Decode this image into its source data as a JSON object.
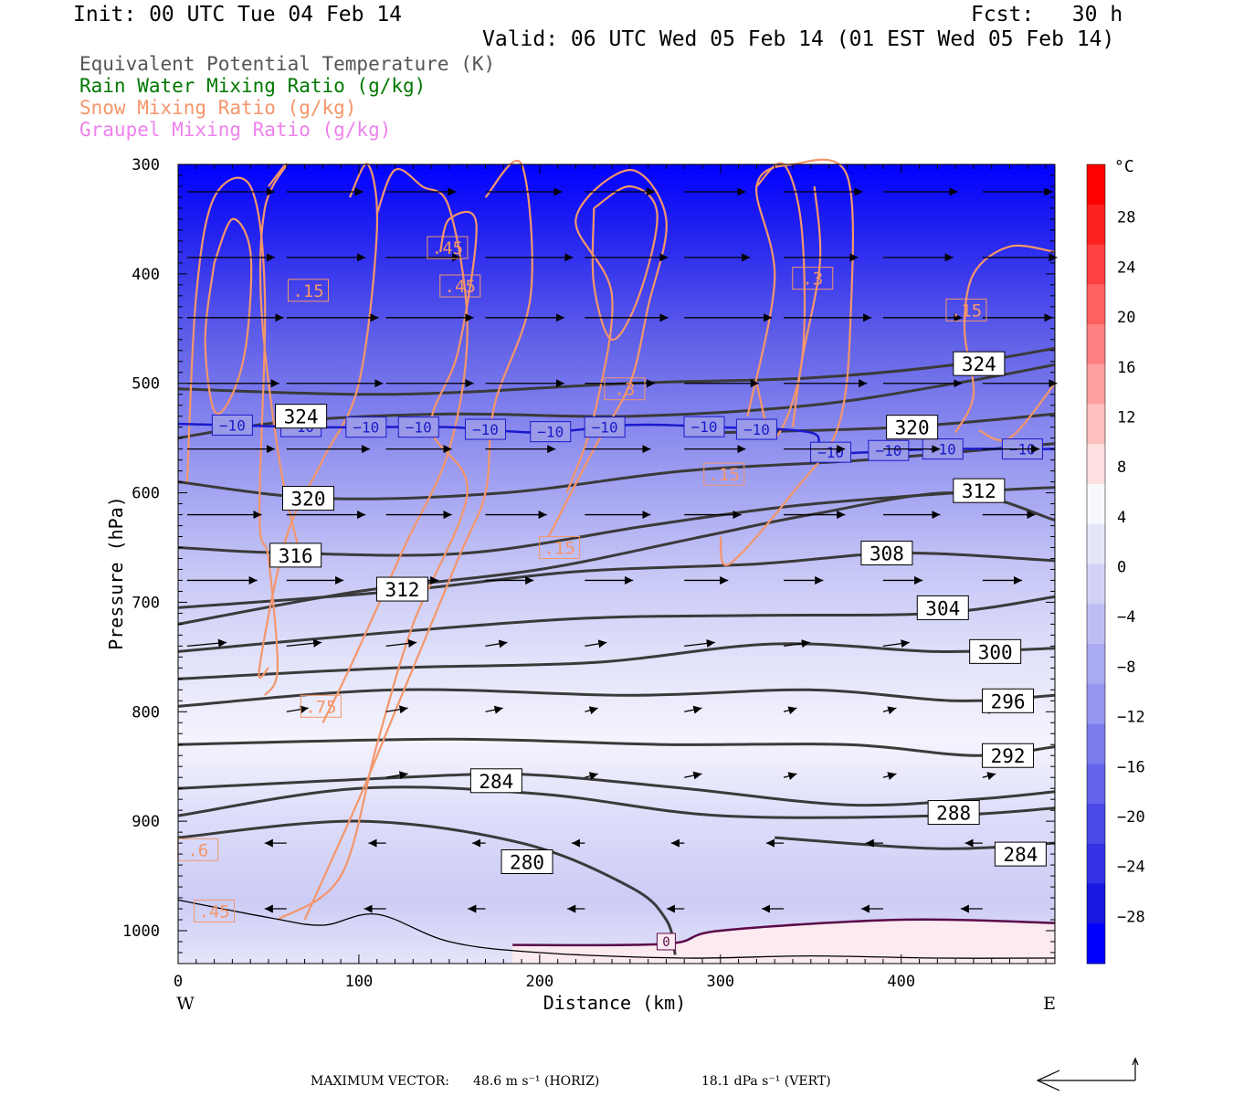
{
  "header": {
    "init": "Init: 00 UTC Tue 04 Feb 14",
    "fcst": "Fcst:   30 h",
    "valid": "Valid: 06 UTC Wed 05 Feb 14 (01 EST Wed 05 Feb 14)"
  },
  "legend": [
    {
      "label": "Equivalent Potential Temperature (K)",
      "color": "#555555"
    },
    {
      "label": "Rain Water Mixing Ratio (g/kg)",
      "color": "#007700"
    },
    {
      "label": "Snow Mixing Ratio (g/kg)",
      "color": "#f4966a"
    },
    {
      "label": "Graupel Mixing Ratio (g/kg)",
      "color": "#ee82ee"
    }
  ],
  "colorbar": {
    "unit": "°C",
    "labels": [
      "28",
      "24",
      "20",
      "16",
      "12",
      "8",
      "4",
      "0",
      "−4",
      "−8",
      "−12",
      "−16",
      "−20",
      "−24",
      "−28"
    ],
    "colors": [
      "#ff0000",
      "#ff2020",
      "#ff4040",
      "#ff6060",
      "#ff8080",
      "#ffa0a0",
      "#ffc0c0",
      "#ffe0e0",
      "#f8f8ff",
      "#e6e6fa",
      "#d2d2f8",
      "#bebef5",
      "#aaaaf3",
      "#9696f0",
      "#7c7cee",
      "#6464ea",
      "#4a4ae6",
      "#3232e4",
      "#1818e2",
      "#0000ff"
    ]
  },
  "chart_data": {
    "type": "cross-section",
    "xlabel": "Distance (km)",
    "ylabel": "Pressure (hPa)",
    "xlim": [
      0,
      485
    ],
    "ylim": [
      1030,
      300
    ],
    "x_ticks": [
      "0",
      "100",
      "200",
      "300",
      "400"
    ],
    "x_tick_values": [
      0,
      100,
      200,
      300,
      400
    ],
    "y_ticks": [
      "300",
      "400",
      "500",
      "600",
      "700",
      "800",
      "900",
      "1000"
    ],
    "y_tick_values": [
      300,
      400,
      500,
      600,
      700,
      800,
      900,
      1000
    ],
    "west_label": "W",
    "east_label": "E",
    "theta_e_contours": [
      {
        "label": "324",
        "lx": 68,
        "lp": 530,
        "pts": [
          [
            0,
            550
          ],
          [
            60,
            535
          ],
          [
            150,
            528
          ],
          [
            250,
            530
          ],
          [
            350,
            520
          ],
          [
            430,
            500
          ],
          [
            485,
            483
          ]
        ]
      },
      {
        "label": "324",
        "lx": 443,
        "lp": 482,
        "pts": [
          [
            0,
            505
          ],
          [
            120,
            510
          ],
          [
            250,
            500
          ],
          [
            350,
            495
          ],
          [
            430,
            483
          ],
          [
            485,
            468
          ]
        ]
      },
      {
        "label": "320",
        "lx": 72,
        "lp": 605,
        "pts": [
          [
            0,
            590
          ],
          [
            80,
            605
          ],
          [
            180,
            600
          ],
          [
            280,
            580
          ],
          [
            380,
            570
          ],
          [
            485,
            555
          ]
        ]
      },
      {
        "label": "320",
        "lx": 406,
        "lp": 540,
        "pts": [
          [
            300,
            545
          ],
          [
            400,
            540
          ],
          [
            485,
            528
          ]
        ]
      },
      {
        "label": "316",
        "lx": 65,
        "lp": 657,
        "pts": [
          [
            0,
            650
          ],
          [
            60,
            655
          ],
          [
            160,
            655
          ],
          [
            260,
            630
          ],
          [
            340,
            612
          ],
          [
            430,
            600
          ],
          [
            485,
            595
          ]
        ]
      },
      {
        "label": "312",
        "lx": 124,
        "lp": 688,
        "pts": [
          [
            0,
            720
          ],
          [
            100,
            690
          ],
          [
            200,
            670
          ],
          [
            290,
            640
          ],
          [
            350,
            620
          ],
          [
            430,
            600
          ],
          [
            485,
            625
          ]
        ]
      },
      {
        "label": "312",
        "lx": 443,
        "lp": 598,
        "pts": []
      },
      {
        "label": "308",
        "lx": 392,
        "lp": 655,
        "pts": [
          [
            0,
            705
          ],
          [
            120,
            690
          ],
          [
            220,
            672
          ],
          [
            320,
            665
          ],
          [
            400,
            655
          ],
          [
            485,
            662
          ]
        ]
      },
      {
        "label": "304",
        "lx": 423,
        "lp": 705,
        "pts": [
          [
            0,
            745
          ],
          [
            100,
            730
          ],
          [
            220,
            715
          ],
          [
            320,
            712
          ],
          [
            420,
            710
          ],
          [
            485,
            695
          ]
        ]
      },
      {
        "label": "300",
        "lx": 452,
        "lp": 745,
        "pts": [
          [
            0,
            770
          ],
          [
            120,
            760
          ],
          [
            230,
            755
          ],
          [
            330,
            738
          ],
          [
            420,
            745
          ],
          [
            485,
            742
          ]
        ]
      },
      {
        "label": "296",
        "lx": 459,
        "lp": 790,
        "pts": [
          [
            0,
            795
          ],
          [
            120,
            780
          ],
          [
            250,
            785
          ],
          [
            350,
            780
          ],
          [
            430,
            790
          ],
          [
            485,
            785
          ]
        ]
      },
      {
        "label": "292",
        "lx": 459,
        "lp": 840,
        "pts": [
          [
            0,
            830
          ],
          [
            150,
            825
          ],
          [
            270,
            830
          ],
          [
            370,
            830
          ],
          [
            440,
            840
          ],
          [
            485,
            832
          ]
        ]
      },
      {
        "label": "284",
        "lx": 176,
        "lp": 863,
        "pts": [
          [
            0,
            870
          ],
          [
            150,
            858
          ],
          [
            200,
            858
          ],
          [
            280,
            870
          ],
          [
            370,
            885
          ],
          [
            440,
            880
          ],
          [
            485,
            873
          ]
        ]
      },
      {
        "label": "288",
        "lx": 429,
        "lp": 892,
        "pts": [
          [
            0,
            895
          ],
          [
            100,
            870
          ],
          [
            200,
            875
          ],
          [
            300,
            895
          ],
          [
            420,
            895
          ],
          [
            485,
            888
          ]
        ]
      },
      {
        "label": "280",
        "lx": 193,
        "lp": 937,
        "pts": [
          [
            0,
            915
          ],
          [
            100,
            900
          ],
          [
            190,
            920
          ],
          [
            250,
            960
          ],
          [
            270,
            990
          ],
          [
            275,
            1022
          ]
        ]
      },
      {
        "label": "284",
        "lx": 466,
        "lp": 930,
        "pts": [
          [
            330,
            915
          ],
          [
            420,
            925
          ],
          [
            485,
            920
          ]
        ]
      }
    ],
    "isotherm_minus10": {
      "label": "−10",
      "pts": [
        [
          0,
          537
        ],
        [
          80,
          540
        ],
        [
          150,
          540
        ],
        [
          200,
          545
        ],
        [
          250,
          538
        ],
        [
          300,
          540
        ],
        [
          350,
          545
        ],
        [
          360,
          563
        ],
        [
          420,
          560
        ],
        [
          485,
          560
        ]
      ],
      "labels_x": [
        30,
        68,
        104,
        133,
        170,
        206,
        236,
        291,
        320,
        361,
        393,
        423,
        467
      ]
    },
    "zero_line": {
      "label": "0",
      "pts": [
        [
          185,
          1013
        ],
        [
          270,
          1012
        ],
        [
          300,
          1000
        ],
        [
          400,
          990
        ],
        [
          485,
          993
        ]
      ]
    },
    "terrain": [
      [
        0,
        972
      ],
      [
        50,
        988
      ],
      [
        80,
        995
      ],
      [
        110,
        985
      ],
      [
        150,
        1010
      ],
      [
        200,
        1020
      ],
      [
        280,
        1025
      ],
      [
        350,
        1023
      ],
      [
        420,
        1025
      ],
      [
        485,
        1025
      ]
    ],
    "snow_labels": [
      {
        "text": ".15",
        "x": 72,
        "p": 415
      },
      {
        "text": ".45",
        "x": 149,
        "p": 376
      },
      {
        "text": ".45",
        "x": 156,
        "p": 411
      },
      {
        "text": ".3",
        "x": 351,
        "p": 404
      },
      {
        "text": ".15",
        "x": 436,
        "p": 433
      },
      {
        "text": ".3",
        "x": 247,
        "p": 505
      },
      {
        "text": ".15",
        "x": 302,
        "p": 583
      },
      {
        "text": ".15",
        "x": 211,
        "p": 650
      },
      {
        "text": ".75",
        "x": 79,
        "p": 795
      },
      {
        "text": ".6",
        "x": 11,
        "p": 926
      },
      {
        "text": ".45",
        "x": 20,
        "p": 982
      }
    ],
    "snow_contours": [
      [
        [
          5,
          590
        ],
        [
          10,
          420
        ],
        [
          20,
          330
        ],
        [
          40,
          320
        ],
        [
          48,
          420
        ],
        [
          45,
          620
        ],
        [
          50,
          660
        ],
        [
          55,
          760
        ],
        [
          48,
          785
        ]
      ],
      [
        [
          20,
          390
        ],
        [
          30,
          350
        ],
        [
          40,
          380
        ],
        [
          38,
          460
        ],
        [
          30,
          510
        ],
        [
          20,
          525
        ],
        [
          15,
          460
        ],
        [
          20,
          390
        ]
      ],
      [
        [
          50,
          320
        ],
        [
          60,
          300
        ],
        [
          48,
          340
        ],
        [
          46,
          430
        ],
        [
          55,
          560
        ],
        [
          65,
          640
        ],
        [
          70,
          660
        ]
      ],
      [
        [
          95,
          330
        ],
        [
          105,
          300
        ],
        [
          110,
          360
        ],
        [
          100,
          500
        ],
        [
          80,
          570
        ],
        [
          60,
          640
        ],
        [
          45,
          760
        ],
        [
          50,
          760
        ]
      ],
      [
        [
          110,
          345
        ],
        [
          120,
          305
        ],
        [
          135,
          320
        ],
        [
          150,
          340
        ],
        [
          160,
          450
        ],
        [
          150,
          560
        ],
        [
          125,
          650
        ],
        [
          95,
          760
        ],
        [
          80,
          810
        ]
      ],
      [
        [
          145,
          380
        ],
        [
          150,
          350
        ],
        [
          165,
          355
        ],
        [
          155,
          470
        ],
        [
          140,
          540
        ],
        [
          160,
          600
        ],
        [
          130,
          720
        ],
        [
          110,
          830
        ],
        [
          90,
          950
        ],
        [
          55,
          990
        ]
      ],
      [
        [
          170,
          330
        ],
        [
          190,
          300
        ],
        [
          195,
          420
        ],
        [
          175,
          520
        ],
        [
          170,
          600
        ],
        [
          155,
          660
        ],
        [
          120,
          800
        ],
        [
          100,
          880
        ],
        [
          70,
          990
        ]
      ],
      [
        [
          215,
          600
        ],
        [
          230,
          530
        ],
        [
          240,
          420
        ],
        [
          220,
          350
        ],
        [
          250,
          305
        ],
        [
          270,
          350
        ],
        [
          260,
          430
        ],
        [
          250,
          500
        ],
        [
          230,
          560
        ],
        [
          205,
          640
        ]
      ],
      [
        [
          230,
          340
        ],
        [
          250,
          320
        ],
        [
          265,
          345
        ],
        [
          255,
          420
        ],
        [
          240,
          460
        ],
        [
          230,
          410
        ],
        [
          230,
          340
        ]
      ],
      [
        [
          315,
          530
        ],
        [
          330,
          405
        ],
        [
          320,
          320
        ],
        [
          340,
          300
        ],
        [
          370,
          310
        ],
        [
          372,
          440
        ],
        [
          365,
          540
        ],
        [
          340,
          600
        ],
        [
          305,
          665
        ],
        [
          300,
          640
        ]
      ],
      [
        [
          320,
          320
        ],
        [
          335,
          300
        ],
        [
          345,
          360
        ],
        [
          345,
          480
        ],
        [
          330,
          550
        ],
        [
          320,
          500
        ]
      ],
      [
        [
          352,
          320
        ],
        [
          355,
          390
        ],
        [
          345,
          480
        ],
        [
          340,
          540
        ]
      ],
      [
        [
          430,
          545
        ],
        [
          440,
          510
        ],
        [
          435,
          450
        ],
        [
          440,
          400
        ],
        [
          460,
          375
        ],
        [
          485,
          380
        ]
      ],
      [
        [
          443,
          543
        ],
        [
          460,
          550
        ],
        [
          485,
          500
        ]
      ]
    ],
    "wind_vectors_note": "horizontal/vertical circulation arrows",
    "max_vector_label": "MAXIMUM VECTOR:",
    "max_vector_horiz": "48.6 m s⁻¹ (HORIZ)",
    "max_vector_vert": "18.1 dPa s⁻¹ (VERT)"
  }
}
